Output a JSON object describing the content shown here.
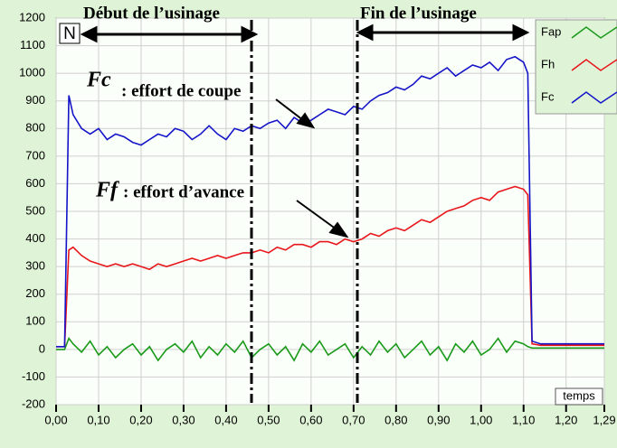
{
  "chart_data": {
    "type": "line",
    "annotations": {
      "start": "Début de l’usinage",
      "end": "Fin de l’usinage",
      "corner": "N",
      "fc_symbol": "Fc",
      "fc_text": ": effort de coupe",
      "ff_symbol": "Ff",
      "ff_text": ": effort d’avance",
      "x_label": "temps"
    },
    "x": [
      0.0,
      0.02,
      0.03,
      0.04,
      0.06,
      0.08,
      0.1,
      0.12,
      0.14,
      0.16,
      0.18,
      0.2,
      0.22,
      0.24,
      0.26,
      0.28,
      0.3,
      0.32,
      0.34,
      0.36,
      0.38,
      0.4,
      0.42,
      0.44,
      0.46,
      0.48,
      0.5,
      0.52,
      0.54,
      0.56,
      0.58,
      0.6,
      0.62,
      0.64,
      0.66,
      0.68,
      0.7,
      0.72,
      0.74,
      0.76,
      0.78,
      0.8,
      0.82,
      0.84,
      0.86,
      0.88,
      0.9,
      0.92,
      0.94,
      0.96,
      0.98,
      1.0,
      1.02,
      1.04,
      1.06,
      1.08,
      1.1,
      1.11,
      1.12,
      1.14,
      1.16,
      1.18,
      1.2,
      1.22,
      1.24,
      1.26,
      1.28,
      1.29
    ],
    "series": [
      {
        "name": "Fap",
        "color": "#1a9a1a",
        "values": [
          0,
          0,
          40,
          20,
          -10,
          30,
          -20,
          10,
          -30,
          0,
          20,
          -20,
          10,
          -40,
          0,
          20,
          -10,
          30,
          -30,
          10,
          -20,
          20,
          -10,
          30,
          -30,
          0,
          20,
          -20,
          10,
          -40,
          20,
          -10,
          30,
          -20,
          0,
          20,
          -30,
          10,
          -20,
          30,
          -10,
          20,
          -30,
          0,
          30,
          -20,
          10,
          -40,
          20,
          -10,
          30,
          -20,
          0,
          40,
          -10,
          30,
          20,
          10,
          5,
          5,
          5,
          5,
          5,
          5,
          5,
          5,
          5,
          5
        ]
      },
      {
        "name": "Fh",
        "color": "#e8161b",
        "values": [
          10,
          10,
          360,
          370,
          340,
          320,
          310,
          300,
          310,
          300,
          310,
          300,
          290,
          310,
          300,
          310,
          320,
          330,
          320,
          330,
          340,
          330,
          340,
          350,
          350,
          360,
          350,
          370,
          360,
          380,
          380,
          370,
          390,
          390,
          380,
          400,
          390,
          400,
          420,
          410,
          430,
          440,
          430,
          450,
          470,
          460,
          480,
          500,
          510,
          520,
          540,
          550,
          540,
          570,
          580,
          590,
          580,
          560,
          20,
          15,
          15,
          15,
          15,
          15,
          15,
          15,
          15,
          15
        ]
      },
      {
        "name": "Fc",
        "color": "#1414c8",
        "values": [
          10,
          10,
          920,
          850,
          800,
          780,
          800,
          760,
          780,
          770,
          750,
          740,
          760,
          780,
          770,
          800,
          790,
          760,
          780,
          810,
          780,
          760,
          800,
          790,
          810,
          800,
          820,
          830,
          800,
          840,
          820,
          830,
          850,
          870,
          860,
          850,
          880,
          870,
          900,
          920,
          930,
          950,
          940,
          960,
          990,
          980,
          1000,
          1020,
          990,
          1010,
          1030,
          1020,
          1040,
          1010,
          1050,
          1060,
          1040,
          1000,
          30,
          20,
          20,
          20,
          20,
          20,
          20,
          20,
          20,
          20
        ]
      }
    ],
    "xlim": [
      0,
      1.29
    ],
    "ylim": [
      -200,
      1200
    ],
    "xticks": [
      {
        "value": 0,
        "label": "0,00"
      },
      {
        "value": 0.1,
        "label": "0,10"
      },
      {
        "value": 0.2,
        "label": "0,20"
      },
      {
        "value": 0.3,
        "label": "0,30"
      },
      {
        "value": 0.4,
        "label": "0,40"
      },
      {
        "value": 0.5,
        "label": "0,50"
      },
      {
        "value": 0.6,
        "label": "0,60"
      },
      {
        "value": 0.7,
        "label": "0,70"
      },
      {
        "value": 0.8,
        "label": "0,80"
      },
      {
        "value": 0.9,
        "label": "0,90"
      },
      {
        "value": 1.0,
        "label": "1,00"
      },
      {
        "value": 1.1,
        "label": "1,10"
      },
      {
        "value": 1.2,
        "label": "1,20"
      },
      {
        "value": 1.29,
        "label": "1,29"
      }
    ],
    "yticks": [
      -200,
      -100,
      0,
      100,
      200,
      300,
      400,
      500,
      600,
      700,
      800,
      900,
      1000,
      1100,
      1200
    ],
    "grid": true
  }
}
